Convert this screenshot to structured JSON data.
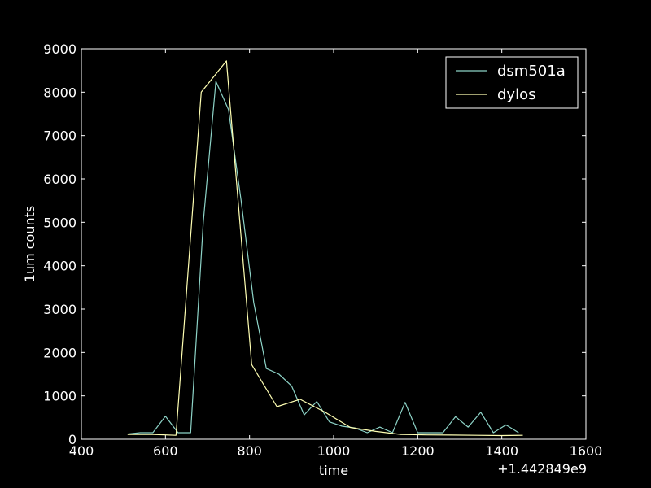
{
  "chart_data": {
    "type": "line",
    "xlabel": "time",
    "ylabel": "1um counts",
    "x_offset_label": "+1.442849e9",
    "xlim": [
      400,
      1600
    ],
    "ylim": [
      0,
      9000
    ],
    "xticks": [
      400,
      600,
      800,
      1000,
      1200,
      1400,
      1600
    ],
    "yticks": [
      0,
      1000,
      2000,
      3000,
      4000,
      5000,
      6000,
      7000,
      8000,
      9000
    ],
    "legend_position": "top-right",
    "series": [
      {
        "name": "dsm501a",
        "color": "#8dd3c7",
        "x": [
          510,
          540,
          570,
          600,
          630,
          660,
          690,
          720,
          750,
          780,
          810,
          840,
          870,
          900,
          930,
          960,
          990,
          1020,
          1050,
          1080,
          1110,
          1140,
          1170,
          1200,
          1230,
          1260,
          1290,
          1320,
          1350,
          1380,
          1410,
          1440
        ],
        "y": [
          120,
          150,
          150,
          530,
          150,
          150,
          5000,
          8250,
          7600,
          5500,
          3150,
          1630,
          1500,
          1230,
          560,
          870,
          400,
          300,
          260,
          150,
          280,
          150,
          850,
          150,
          150,
          150,
          520,
          280,
          620,
          150,
          330,
          150
        ]
      },
      {
        "name": "dylos",
        "color": "#ffffb3",
        "x": [
          510,
          570,
          625,
          685,
          745,
          805,
          865,
          920,
          980,
          1040,
          1100,
          1160,
          1220,
          1280,
          1340,
          1400,
          1450
        ],
        "y": [
          110,
          110,
          90,
          8000,
          8720,
          1720,
          750,
          920,
          620,
          270,
          180,
          110,
          100,
          95,
          90,
          85,
          90
        ]
      }
    ]
  }
}
